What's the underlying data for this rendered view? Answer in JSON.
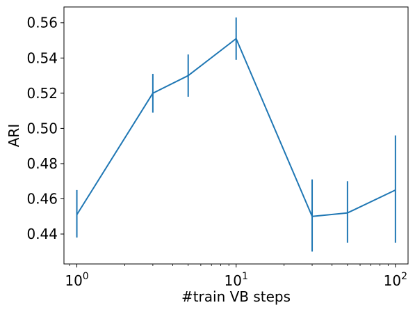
{
  "chart_data": {
    "type": "line",
    "title": "",
    "xlabel": "#train VB steps",
    "ylabel": "ARI",
    "x_scale": "log",
    "xlim": [
      0.83,
      120
    ],
    "ylim": [
      0.423,
      0.569
    ],
    "grid": false,
    "legend": "none",
    "x_ticks": [
      {
        "value": 1,
        "base": "10",
        "exp": "0"
      },
      {
        "value": 10,
        "base": "10",
        "exp": "1"
      },
      {
        "value": 100,
        "base": "10",
        "exp": "2"
      }
    ],
    "y_ticks": [
      {
        "value": 0.44,
        "label": "0.44"
      },
      {
        "value": 0.46,
        "label": "0.46"
      },
      {
        "value": 0.48,
        "label": "0.48"
      },
      {
        "value": 0.5,
        "label": "0.50"
      },
      {
        "value": 0.52,
        "label": "0.52"
      },
      {
        "value": 0.54,
        "label": "0.54"
      },
      {
        "value": 0.56,
        "label": "0.56"
      }
    ],
    "series": [
      {
        "color": "#1f77b4",
        "x": [
          1,
          3,
          5,
          10,
          30,
          50,
          100
        ],
        "y": [
          0.451,
          0.52,
          0.53,
          0.551,
          0.45,
          0.452,
          0.465
        ],
        "yerr_low": [
          0.438,
          0.509,
          0.518,
          0.539,
          0.43,
          0.435,
          0.435
        ],
        "yerr_high": [
          0.465,
          0.531,
          0.542,
          0.563,
          0.471,
          0.47,
          0.496
        ]
      }
    ]
  }
}
